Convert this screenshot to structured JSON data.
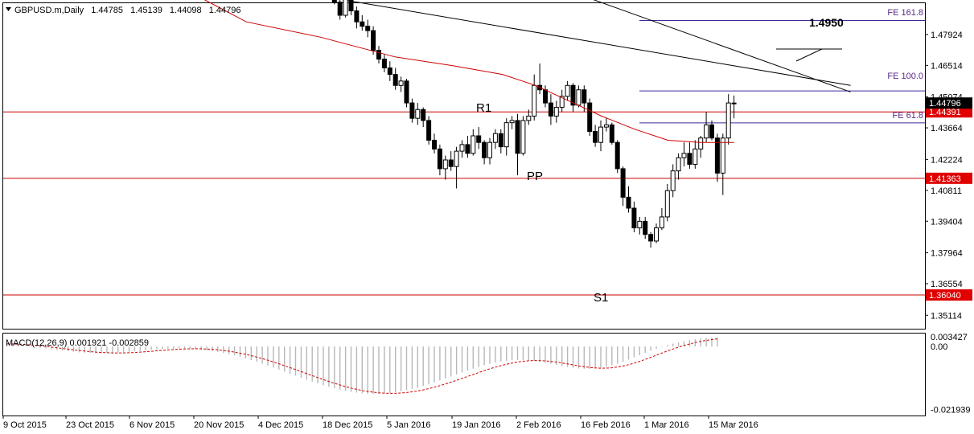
{
  "chart_data": {
    "type": "candlestick",
    "header": {
      "symbol": "GBPUSD.m,Daily",
      "open": "1.44785",
      "high": "1.45139",
      "low": "1.44098",
      "close": "1.44796"
    },
    "price_axis_ticks": [
      "1.47924",
      "1.46514",
      "1.45074",
      "1.43664",
      "1.42224",
      "1.40811",
      "1.39404",
      "1.37964",
      "1.36554",
      "1.35114"
    ],
    "price_range": [
      1.345,
      1.4935
    ],
    "current_price": "1.44796",
    "horizontal_levels": [
      {
        "name": "R1",
        "price": 1.44391,
        "tag": "1.44391"
      },
      {
        "name": "PP",
        "price": 1.41363,
        "tag": "1.41363"
      },
      {
        "name": "S1",
        "price": 1.3604,
        "tag": "1.36040"
      }
    ],
    "fibonacci_levels": [
      {
        "label": "FE 161.8",
        "price": 1.4856
      },
      {
        "label": "FE 100.0",
        "price": 1.4535
      },
      {
        "label": "FE 61.8",
        "price": 1.4389
      }
    ],
    "target_label": "1.4950",
    "date_ticks": [
      "9 Oct 2015",
      "23 Oct 2015",
      "6 Nov 2015",
      "20 Nov 2015",
      "4 Dec 2015",
      "18 Dec 2015",
      "5 Jan 2016",
      "19 Jan 2016",
      "2 Feb 2016",
      "16 Feb 2016",
      "1 Mar 2016",
      "15 Mar 2016"
    ],
    "candles_visible_from": "16 Dec 2015",
    "candles": [
      [
        1.499,
        1.5005,
        1.4965,
        1.498
      ],
      [
        1.498,
        1.4995,
        1.496,
        1.4975
      ],
      [
        1.4975,
        1.499,
        1.493,
        1.494
      ],
      [
        1.494,
        1.4965,
        1.486,
        1.488
      ],
      [
        1.488,
        1.498,
        1.487,
        1.496
      ],
      [
        1.496,
        1.4975,
        1.488,
        1.49
      ],
      [
        1.49,
        1.492,
        1.482,
        1.485
      ],
      [
        1.485,
        1.488,
        1.481,
        1.483
      ],
      [
        1.483,
        1.486,
        1.478,
        1.481
      ],
      [
        1.481,
        1.483,
        1.47,
        1.472
      ],
      [
        1.472,
        1.474,
        1.466,
        1.468
      ],
      [
        1.468,
        1.47,
        1.462,
        1.464
      ],
      [
        1.464,
        1.467,
        1.458,
        1.461
      ],
      [
        1.461,
        1.464,
        1.454,
        1.456
      ],
      [
        1.456,
        1.46,
        1.453,
        1.458
      ],
      [
        1.458,
        1.459,
        1.446,
        1.448
      ],
      [
        1.448,
        1.45,
        1.439,
        1.441
      ],
      [
        1.441,
        1.448,
        1.438,
        1.445
      ],
      [
        1.445,
        1.446,
        1.437,
        1.44
      ],
      [
        1.44,
        1.442,
        1.429,
        1.431
      ],
      [
        1.431,
        1.434,
        1.425,
        1.427
      ],
      [
        1.427,
        1.429,
        1.415,
        1.418
      ],
      [
        1.418,
        1.424,
        1.413,
        1.422
      ],
      [
        1.422,
        1.426,
        1.417,
        1.419
      ],
      [
        1.419,
        1.428,
        1.409,
        1.426
      ],
      [
        1.426,
        1.431,
        1.423,
        1.429
      ],
      [
        1.429,
        1.433,
        1.423,
        1.425
      ],
      [
        1.425,
        1.436,
        1.424,
        1.433
      ],
      [
        1.433,
        1.437,
        1.427,
        1.43
      ],
      [
        1.43,
        1.431,
        1.42,
        1.423
      ],
      [
        1.423,
        1.432,
        1.42,
        1.43
      ],
      [
        1.43,
        1.436,
        1.427,
        1.434
      ],
      [
        1.434,
        1.436,
        1.425,
        1.428
      ],
      [
        1.428,
        1.441,
        1.424,
        1.439
      ],
      [
        1.439,
        1.442,
        1.436,
        1.44
      ],
      [
        1.44,
        1.443,
        1.415,
        1.425
      ],
      [
        1.425,
        1.442,
        1.424,
        1.44
      ],
      [
        1.44,
        1.445,
        1.438,
        1.442
      ],
      [
        1.442,
        1.461,
        1.44,
        1.456
      ],
      [
        1.456,
        1.466,
        1.452,
        1.454
      ],
      [
        1.454,
        1.456,
        1.446,
        1.448
      ],
      [
        1.448,
        1.452,
        1.438,
        1.442
      ],
      [
        1.442,
        1.449,
        1.439,
        1.446
      ],
      [
        1.446,
        1.454,
        1.444,
        1.451
      ],
      [
        1.451,
        1.458,
        1.449,
        1.456
      ],
      [
        1.456,
        1.457,
        1.444,
        1.447
      ],
      [
        1.447,
        1.456,
        1.446,
        1.454
      ],
      [
        1.454,
        1.456,
        1.444,
        1.448
      ],
      [
        1.448,
        1.45,
        1.433,
        1.435
      ],
      [
        1.435,
        1.438,
        1.428,
        1.43
      ],
      [
        1.43,
        1.44,
        1.426,
        1.437
      ],
      [
        1.437,
        1.441,
        1.435,
        1.438
      ],
      [
        1.438,
        1.439,
        1.429,
        1.43
      ],
      [
        1.43,
        1.431,
        1.416,
        1.418
      ],
      [
        1.418,
        1.419,
        1.401,
        1.405
      ],
      [
        1.405,
        1.41,
        1.398,
        1.4
      ],
      [
        1.4,
        1.403,
        1.389,
        1.391
      ],
      [
        1.391,
        1.396,
        1.388,
        1.394
      ],
      [
        1.394,
        1.396,
        1.386,
        1.388
      ],
      [
        1.388,
        1.389,
        1.382,
        1.385
      ],
      [
        1.385,
        1.393,
        1.384,
        1.391
      ],
      [
        1.391,
        1.4,
        1.39,
        1.396
      ],
      [
        1.396,
        1.411,
        1.394,
        1.408
      ],
      [
        1.408,
        1.42,
        1.405,
        1.417
      ],
      [
        1.417,
        1.425,
        1.413,
        1.423
      ],
      [
        1.423,
        1.43,
        1.419,
        1.425
      ],
      [
        1.425,
        1.43,
        1.418,
        1.42
      ],
      [
        1.42,
        1.431,
        1.418,
        1.427
      ],
      [
        1.427,
        1.433,
        1.423,
        1.432
      ],
      [
        1.432,
        1.444,
        1.43,
        1.438
      ],
      [
        1.438,
        1.44,
        1.431,
        1.432
      ],
      [
        1.432,
        1.434,
        1.412,
        1.416
      ],
      [
        1.416,
        1.434,
        1.406,
        1.432
      ],
      [
        1.432,
        1.452,
        1.429,
        1.448
      ],
      [
        1.44785,
        1.45139,
        1.44098,
        1.44796
      ]
    ],
    "ma_line": [
      [
        0,
        1.515
      ],
      [
        15,
        1.485
      ],
      [
        24,
        1.478
      ],
      [
        33,
        1.469
      ],
      [
        40,
        1.465
      ],
      [
        46,
        1.461
      ],
      [
        50,
        1.456
      ],
      [
        54,
        1.449
      ],
      [
        58,
        1.442
      ],
      [
        62,
        1.436
      ],
      [
        66,
        1.431
      ],
      [
        70,
        1.43
      ],
      [
        74,
        1.43
      ]
    ],
    "trendlines": [
      {
        "from": [
          -8,
          1.5
        ],
        "to": [
          95,
          1.456
        ]
      },
      {
        "from": [
          40,
          1.503
        ],
        "to": [
          95,
          1.453
        ]
      }
    ],
    "macd": {
      "label": "MACD(12,26,9) 0.001921 -0.002859",
      "axis_ticks": [
        "0.003427",
        "0.00",
        "-0.021939"
      ],
      "range": [
        -0.024,
        0.0045
      ]
    }
  }
}
